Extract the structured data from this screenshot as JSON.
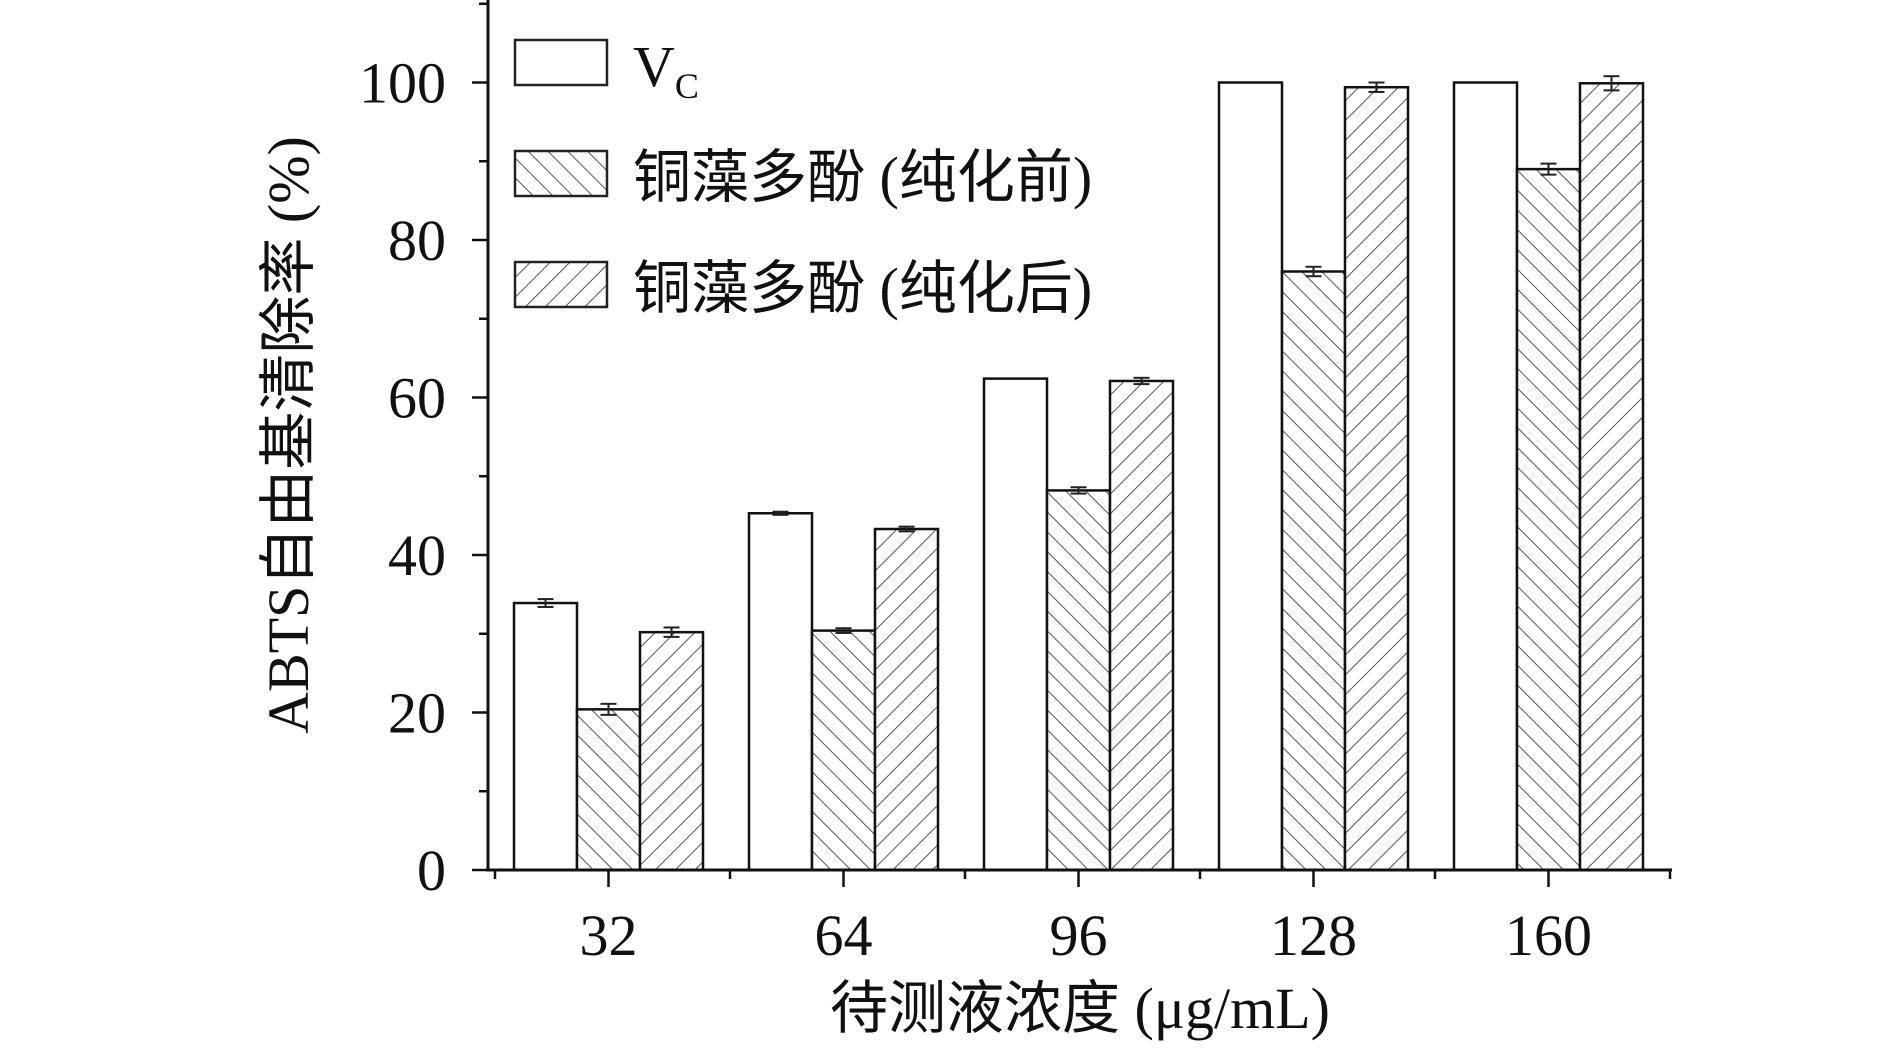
{
  "chart_data": {
    "type": "bar",
    "categories": [
      "32",
      "64",
      "96",
      "128",
      "160"
    ],
    "series": [
      {
        "name": "Vc",
        "legend_main": "V",
        "legend_sub": "C",
        "pattern": "none",
        "values": [
          33.9,
          45.3,
          62.4,
          100,
          100
        ],
        "errors": [
          0.5,
          0.2,
          0,
          0,
          0
        ]
      },
      {
        "name": "铜藻多酚 (纯化前)",
        "pattern": "hatch-forward",
        "values": [
          20.4,
          30.4,
          48.2,
          76.0,
          89.0
        ],
        "errors": [
          0.7,
          0.3,
          0.4,
          0.6,
          0.7
        ]
      },
      {
        "name": "铜藻多酚 (纯化后)",
        "pattern": "hatch-backward",
        "values": [
          30.2,
          43.3,
          62.1,
          99.4,
          99.9
        ],
        "errors": [
          0.6,
          0.3,
          0.4,
          0.6,
          0.9
        ]
      }
    ],
    "xlabel": "待测液浓度 (μg/mL)",
    "ylabel": "ABTS自由基清除率 (%)",
    "ylim": [
      0,
      110
    ],
    "yticks": [
      "0",
      "20",
      "40",
      "60",
      "80",
      "100"
    ],
    "grid": false,
    "legend_position": "top-left",
    "colors": {
      "bar_fill": "#ffffff",
      "stroke": "#111111",
      "hatch": "#555555"
    }
  }
}
